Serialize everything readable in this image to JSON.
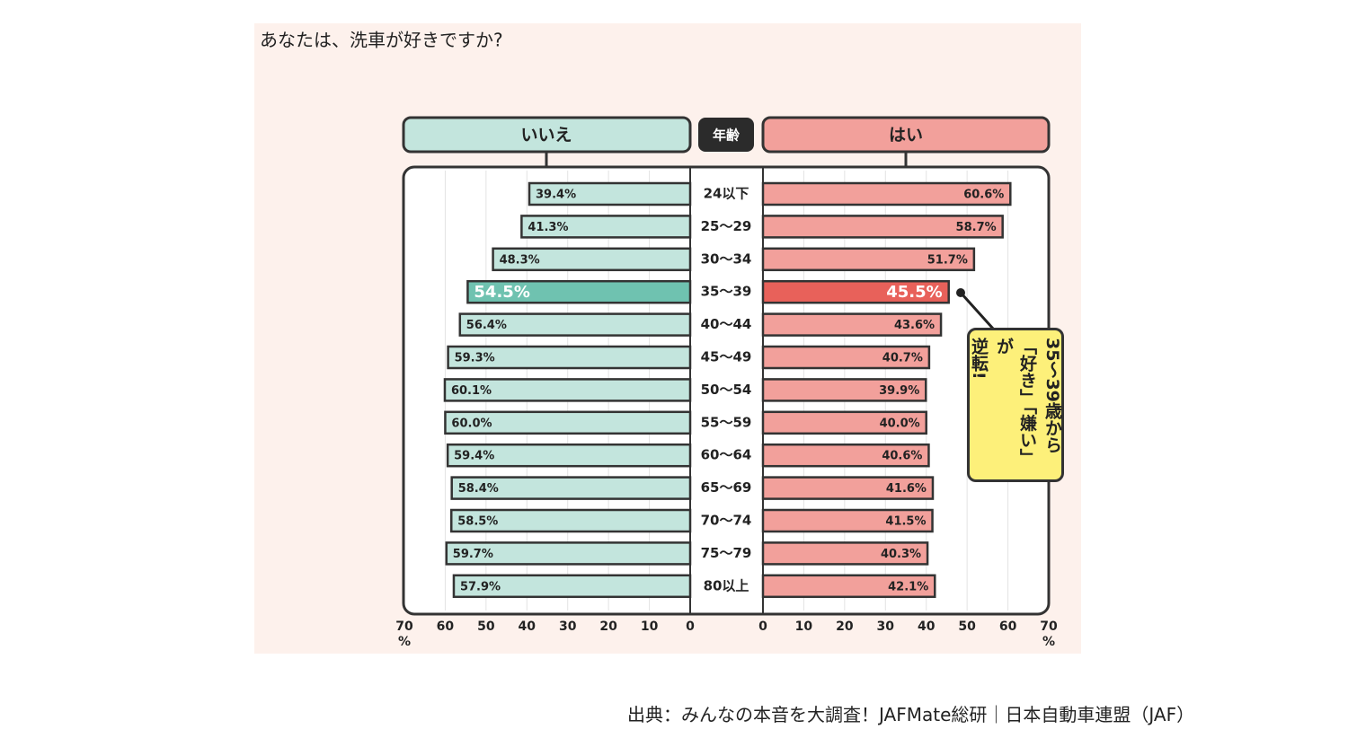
{
  "chart_data": {
    "type": "butterfly-bar",
    "title": "あなたは、洗車が好きですか?",
    "category_header": "年齢",
    "categories": [
      "24以下",
      "25～29",
      "30～34",
      "35～39",
      "40～44",
      "45～49",
      "50～54",
      "55～59",
      "60～64",
      "65～69",
      "70～74",
      "75～79",
      "80以上"
    ],
    "series": [
      {
        "name": "いいえ",
        "side": "left",
        "color": "#c3e5dd",
        "colors": [
          "#c3e5dd",
          "#c3e5dd",
          "#c3e5dd",
          "#6fc2b0",
          "#c3e5dd",
          "#c3e5dd",
          "#c3e5dd",
          "#c3e5dd",
          "#c3e5dd",
          "#c3e5dd",
          "#c3e5dd",
          "#c3e5dd",
          "#c3e5dd"
        ],
        "values": [
          39.4,
          41.3,
          48.3,
          54.5,
          56.4,
          59.3,
          60.1,
          60.0,
          59.4,
          58.4,
          58.5,
          59.7,
          57.9
        ],
        "value_labels": [
          "39.4%",
          "41.3%",
          "48.3%",
          "54.5%",
          "56.4%",
          "59.3%",
          "60.1%",
          "60.0%",
          "59.4%",
          "58.4%",
          "58.5%",
          "59.7%",
          "57.9%"
        ]
      },
      {
        "name": "はい",
        "side": "right",
        "color": "#f2a09b",
        "colors": [
          "#f2a09b",
          "#f2a09b",
          "#f2a09b",
          "#e8615a",
          "#f2a09b",
          "#f2a09b",
          "#f2a09b",
          "#f2a09b",
          "#f2a09b",
          "#f2a09b",
          "#f2a09b",
          "#f2a09b",
          "#f2a09b"
        ],
        "values": [
          60.6,
          58.7,
          51.7,
          45.5,
          43.6,
          40.7,
          39.9,
          40.0,
          40.6,
          41.6,
          41.5,
          40.3,
          42.1
        ],
        "value_labels": [
          "60.6%",
          "58.7%",
          "51.7%",
          "45.5%",
          "43.6%",
          "40.7%",
          "39.9%",
          "40.0%",
          "40.6%",
          "41.6%",
          "41.5%",
          "40.3%",
          "42.1%"
        ]
      }
    ],
    "xlim": [
      0,
      70
    ],
    "xticks": [
      0,
      10,
      20,
      30,
      40,
      50,
      60,
      70
    ],
    "x_unit": "%",
    "grid": true,
    "annotation": [
      "35～39歳から",
      "「好き」「嫌い」が",
      "逆転!"
    ],
    "source": "出典：みんなの本音を大調査！JAFMate総研｜日本自動車連盟（JAF）"
  }
}
